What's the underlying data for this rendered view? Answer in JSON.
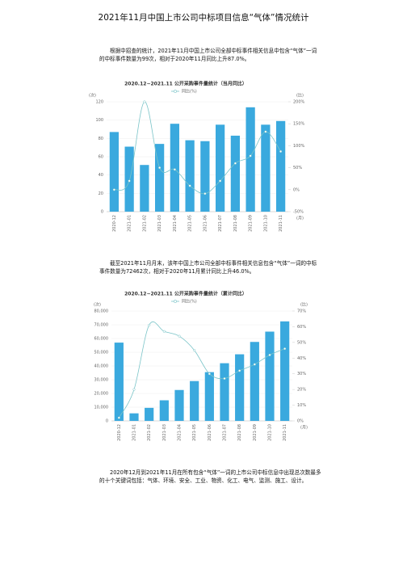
{
  "title": "2021年11月中国上市公司中标项目信息“气体”情况统计",
  "paragraphs": [
    "根据中招查的统计，2021年11月中国上市公司全部中标事件相关信息中包含“气体”一词的中标事件数量为99次，相对于2020年11月同比上升87.0%。",
    "截至2021年11月月末，该年中国上市公司全部中标事件相关信息包含“气体”一词的中标事件数量为72462次，相对于2020年11月累计同比上升46.0%。",
    "2020年12月到2021年11月在所有包含“气体”一词的上市公司中标信息中出现总次数最多的十个关键词包括：气体、环境、安全、工业、物资、化工、电气、监测、施工、设计。"
  ],
  "chart_data": [
    {
      "type": "bar",
      "title": "2020.12~2021.11 公开采购事件量统计（当月同比）",
      "ylabel": "(次)",
      "y2label": "(比)",
      "xlabel": "(月)",
      "grid": true,
      "categories": [
        "2020-12",
        "2021-01",
        "2021-02",
        "2021-03",
        "2021-04",
        "2021-05",
        "2021-06",
        "2021-07",
        "2021-08",
        "2021-09",
        "2021-10",
        "2021-11"
      ],
      "series": [
        {
          "type": "bar",
          "color": "#3aa9de",
          "values": [
            87,
            71,
            51,
            74,
            96,
            78,
            77,
            95,
            83,
            114,
            95,
            99
          ]
        },
        {
          "type": "line",
          "name": "同比(%)",
          "color": "#7ac4c8",
          "axis": "y2",
          "values": [
            0,
            20,
            200,
            50,
            46,
            9,
            -9,
            20,
            60,
            77,
            132,
            87
          ]
        }
      ],
      "ylim": [
        0,
        120
      ],
      "yticks": [
        0,
        20,
        40,
        60,
        80,
        100,
        120
      ],
      "y2lim": [
        -50,
        200
      ],
      "y2ticks": [
        {
          "value": -50,
          "label": "-50%"
        },
        {
          "value": 0,
          "label": "0%"
        },
        {
          "value": 50,
          "label": "50%"
        },
        {
          "value": 100,
          "label": "100%"
        },
        {
          "value": 150,
          "label": "150%"
        },
        {
          "value": 200,
          "label": "200%"
        }
      ]
    },
    {
      "type": "bar",
      "title": "2020.12~2021.11 公开采购事件量统计（累计同比）",
      "ylabel": "(次)",
      "y2label": "(比)",
      "xlabel": "(月)",
      "grid": true,
      "categories": [
        "2020-12",
        "2021-01",
        "2021-02",
        "2021-03",
        "2021-04",
        "2021-05",
        "2021-06",
        "2021-07",
        "2021-08",
        "2021-09",
        "2021-10",
        "2021-11"
      ],
      "series": [
        {
          "type": "bar",
          "color": "#3aa9de",
          "values": [
            57000,
            5500,
            9500,
            15000,
            22500,
            29000,
            35500,
            42000,
            48500,
            57500,
            65000,
            72462
          ]
        },
        {
          "type": "line",
          "name": "同比(%)",
          "color": "#7ac4c8",
          "axis": "y2",
          "values": [
            2,
            20,
            61,
            57,
            54,
            45,
            30,
            27,
            32,
            36,
            42,
            46
          ]
        }
      ],
      "ylim": [
        0,
        80000
      ],
      "yticks": [
        0,
        {
          "value": 10000,
          "label": "10,000"
        },
        {
          "value": 20000,
          "label": "20,000"
        },
        {
          "value": 30000,
          "label": "30,000"
        },
        {
          "value": 40000,
          "label": "40,000"
        },
        {
          "value": 50000,
          "label": "50,000"
        },
        {
          "value": 60000,
          "label": "60,000"
        },
        {
          "value": 70000,
          "label": "70,000"
        },
        {
          "value": 80000,
          "label": "80,000"
        }
      ],
      "y2lim": [
        0,
        70
      ],
      "y2ticks": [
        {
          "value": 0,
          "label": "0%"
        },
        {
          "value": 10,
          "label": "10%"
        },
        {
          "value": 20,
          "label": "20%"
        },
        {
          "value": 30,
          "label": "30%"
        },
        {
          "value": 40,
          "label": "40%"
        },
        {
          "value": 50,
          "label": "50%"
        },
        {
          "value": 60,
          "label": "60%"
        },
        {
          "value": 70,
          "label": "70%"
        }
      ]
    }
  ]
}
